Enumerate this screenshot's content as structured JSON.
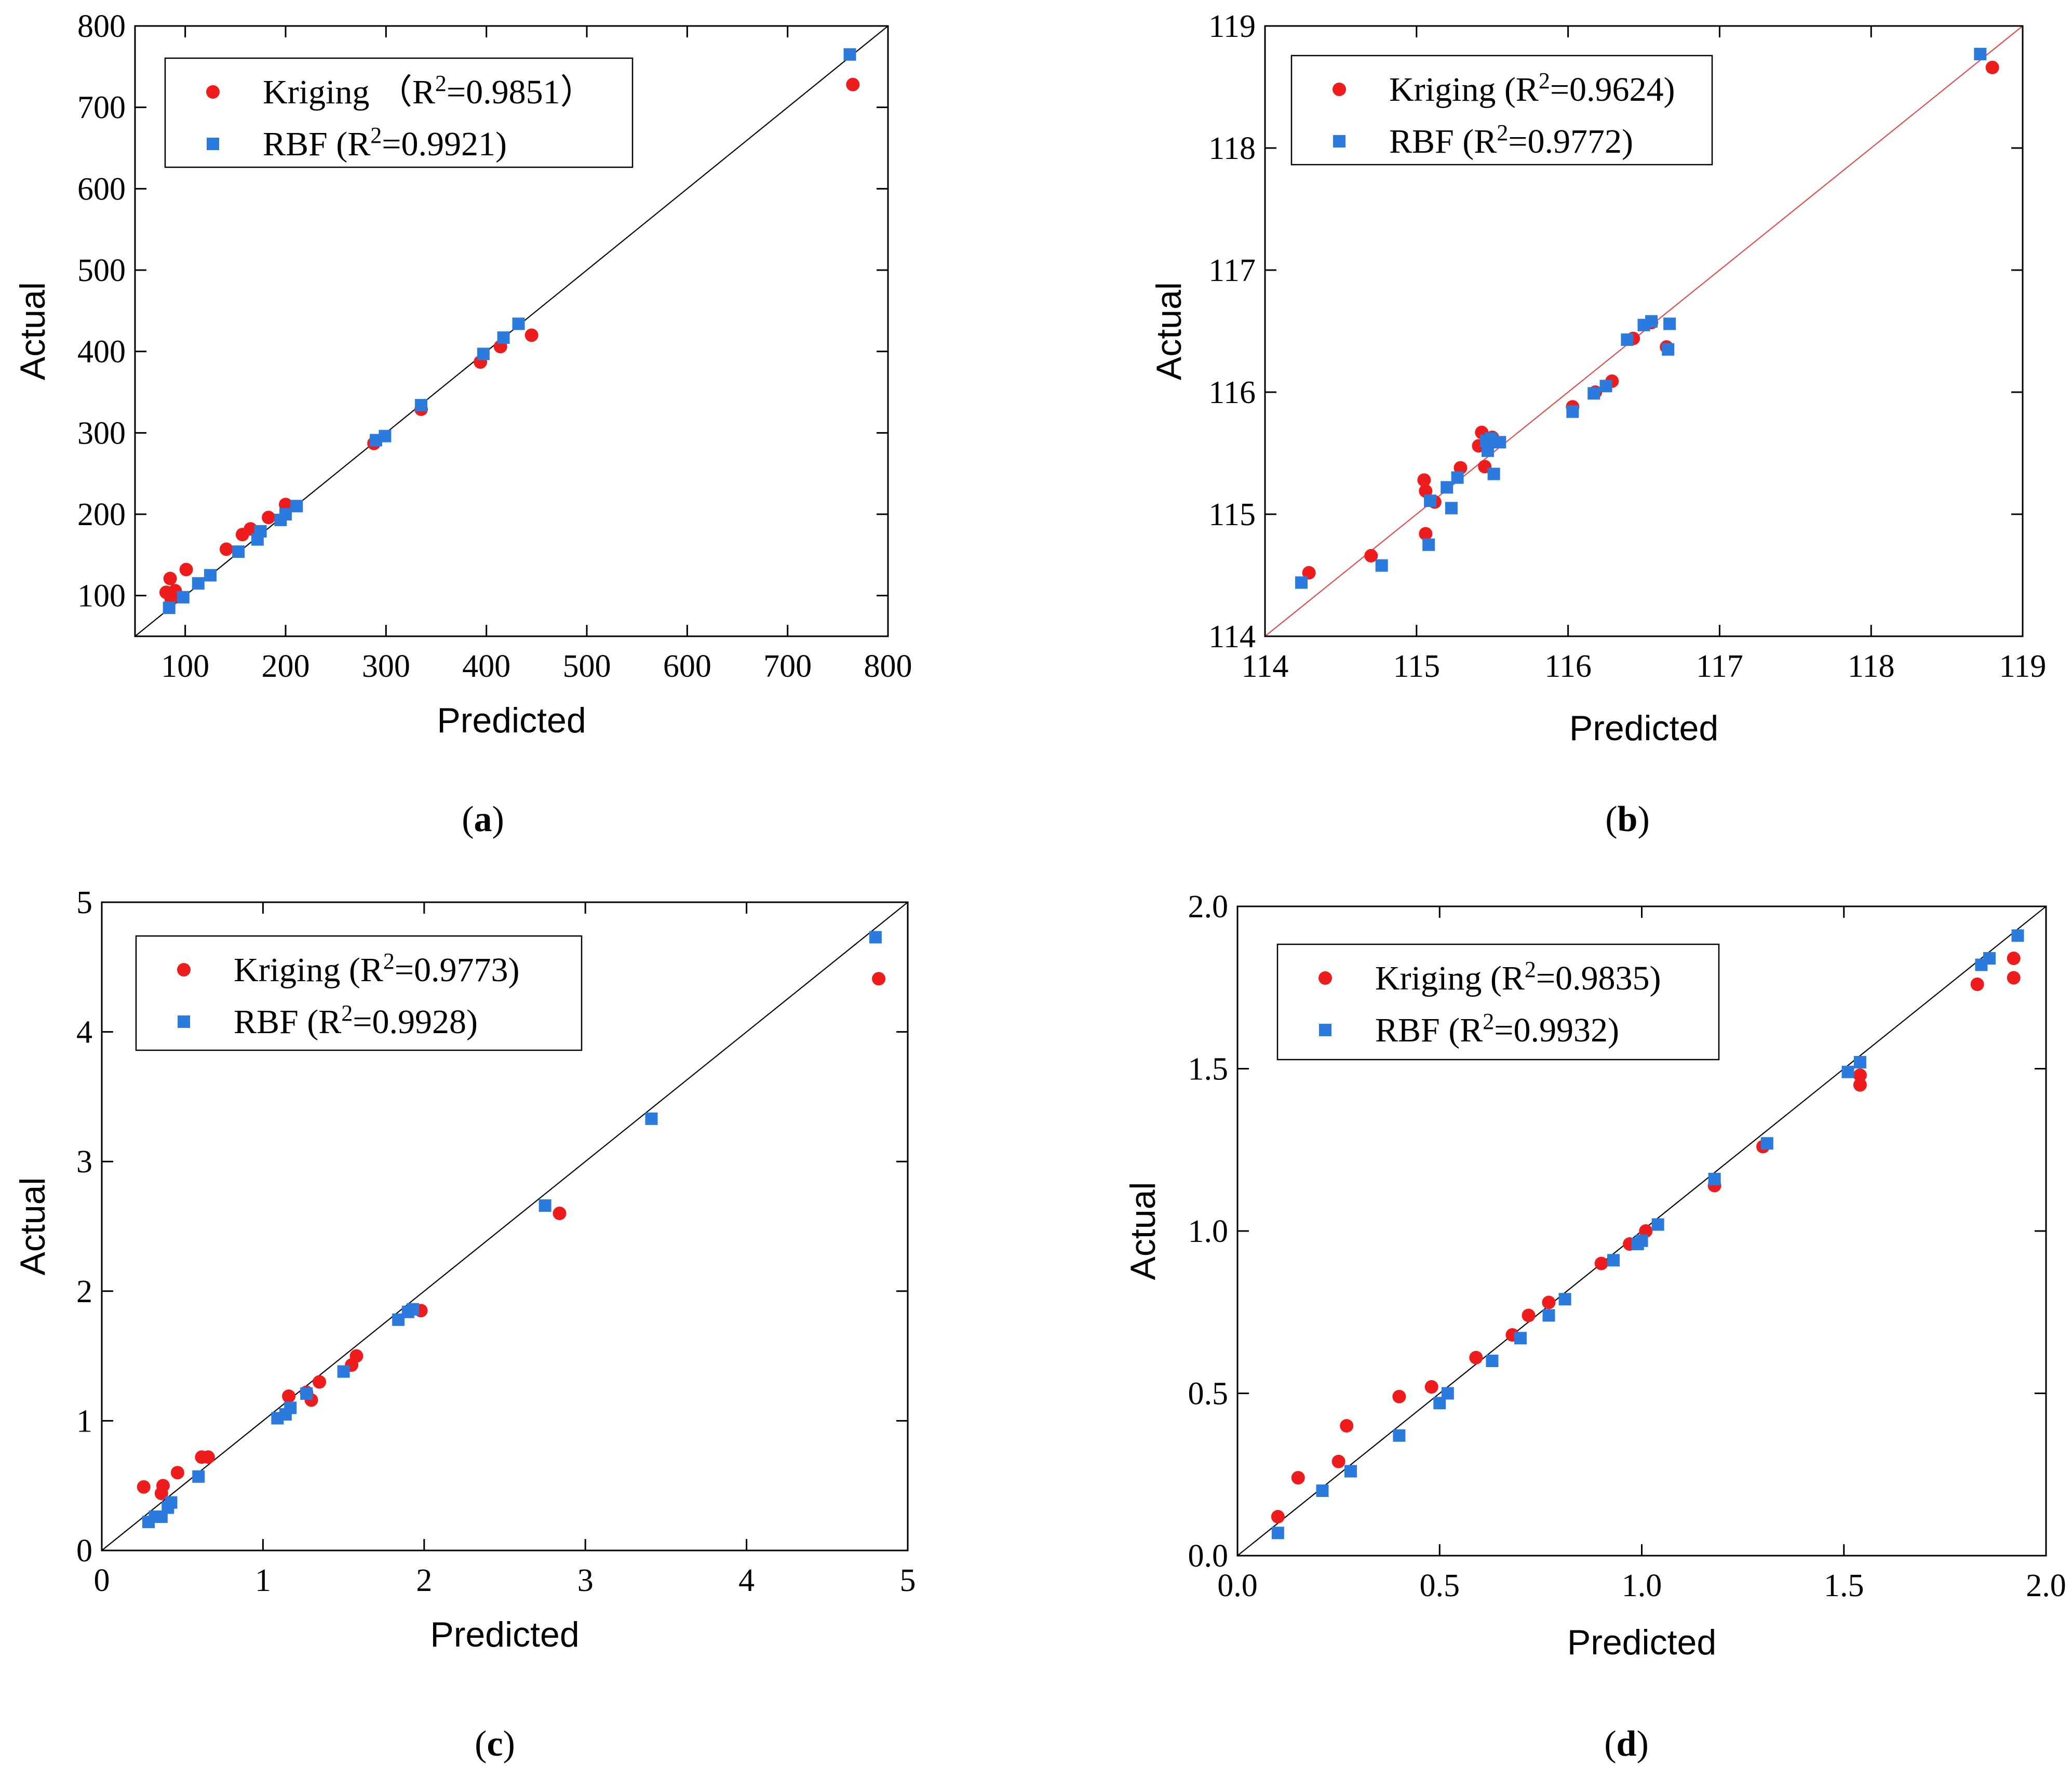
{
  "colors": {
    "kriging": "#ee1c1c",
    "rbf": "#2b7bdf",
    "axis": "#000000",
    "ref_line_a": "#000000",
    "ref_line_b": "#e34a4a"
  },
  "chart_data": [
    {
      "type": "scatter",
      "panel_label": "a",
      "xlabel": "Predicted",
      "ylabel": "Actual",
      "xlim": [
        50,
        800
      ],
      "ylim": [
        50,
        800
      ],
      "xticks": [
        "100",
        "200",
        "300",
        "400",
        "500",
        "600",
        "700",
        "800"
      ],
      "yticks": [
        "100",
        "200",
        "300",
        "400",
        "500",
        "600",
        "700",
        "800"
      ],
      "reference_line": "y = x",
      "legend": [
        {
          "series": "Kriging",
          "text": "Kriging （R",
          "sup": "2",
          "rest": "=0.9851）"
        },
        {
          "series": "RBF",
          "text": "RBF (R",
          "sup": "2",
          "rest": "=0.9921)"
        }
      ],
      "series": [
        {
          "name": "Kriging",
          "marker": "circle",
          "points": [
            [
              765,
              728
            ],
            [
              445,
              420
            ],
            [
              414,
              406
            ],
            [
              394,
              387
            ],
            [
              335,
              329
            ],
            [
              288,
              287
            ],
            [
              200,
              212
            ],
            [
              183,
              196
            ],
            [
              165,
              182
            ],
            [
              157,
              175
            ],
            [
              141,
              157
            ],
            [
              101,
              132
            ],
            [
              85,
              121
            ],
            [
              90,
              106
            ],
            [
              81,
              104
            ],
            [
              86,
              96
            ]
          ]
        },
        {
          "name": "RBF",
          "marker": "square",
          "points": [
            [
              762,
              765
            ],
            [
              432,
              434
            ],
            [
              417,
              417
            ],
            [
              397,
              397
            ],
            [
              335,
              334
            ],
            [
              299,
              296
            ],
            [
              290,
              291
            ],
            [
              211,
              210
            ],
            [
              200,
              200
            ],
            [
              195,
              193
            ],
            [
              175,
              179
            ],
            [
              172,
              169
            ],
            [
              153,
              154
            ],
            [
              125,
              125
            ],
            [
              113,
              115
            ],
            [
              98,
              98
            ],
            [
              84,
              85
            ]
          ]
        }
      ]
    },
    {
      "type": "scatter",
      "panel_label": "b",
      "xlabel": "Predicted",
      "ylabel": "Actual",
      "xlim": [
        114,
        119
      ],
      "ylim": [
        114,
        119
      ],
      "xticks": [
        "114",
        "115",
        "116",
        "117",
        "118",
        "119"
      ],
      "yticks": [
        "114",
        "115",
        "116",
        "117",
        "118",
        "119"
      ],
      "reference_line": "y = x",
      "legend": [
        {
          "series": "Kriging",
          "text": "Kriging (R",
          "sup": "2",
          "rest": "=0.9624)"
        },
        {
          "series": "RBF",
          "text": "RBF (R",
          "sup": "2",
          "rest": "=0.9772)"
        }
      ],
      "series": [
        {
          "name": "Kriging",
          "marker": "circle",
          "points": [
            [
              118.8,
              118.66
            ],
            [
              116.65,
              116.37
            ],
            [
              116.55,
              116.57
            ],
            [
              116.43,
              116.44
            ],
            [
              116.29,
              116.09
            ],
            [
              116.18,
              116.0
            ],
            [
              116.03,
              115.88
            ],
            [
              115.5,
              115.63
            ],
            [
              115.43,
              115.67
            ],
            [
              115.41,
              115.56
            ],
            [
              115.45,
              115.39
            ],
            [
              115.29,
              115.38
            ],
            [
              115.12,
              115.1
            ],
            [
              115.05,
              115.28
            ],
            [
              115.06,
              115.19
            ],
            [
              115.06,
              114.84
            ],
            [
              114.7,
              114.66
            ],
            [
              114.29,
              114.52
            ]
          ]
        },
        {
          "name": "RBF",
          "marker": "square",
          "points": [
            [
              118.72,
              118.77
            ],
            [
              116.67,
              116.56
            ],
            [
              116.66,
              116.35
            ],
            [
              116.55,
              116.58
            ],
            [
              116.5,
              116.55
            ],
            [
              116.39,
              116.43
            ],
            [
              116.25,
              116.05
            ],
            [
              116.17,
              115.99
            ],
            [
              116.03,
              115.84
            ],
            [
              115.55,
              115.59
            ],
            [
              115.49,
              115.62
            ],
            [
              115.46,
              115.6
            ],
            [
              115.47,
              115.52
            ],
            [
              115.51,
              115.33
            ],
            [
              115.27,
              115.3
            ],
            [
              115.2,
              115.22
            ],
            [
              115.23,
              115.05
            ],
            [
              115.09,
              115.11
            ],
            [
              115.08,
              114.75
            ],
            [
              114.77,
              114.58
            ],
            [
              114.24,
              114.44
            ]
          ]
        }
      ]
    },
    {
      "type": "scatter",
      "panel_label": "c",
      "xlabel": "Predicted",
      "ylabel": "Actual",
      "xlim": [
        0,
        5
      ],
      "ylim": [
        0,
        5
      ],
      "xticks": [
        "0",
        "1",
        "2",
        "3",
        "4",
        "5"
      ],
      "yticks": [
        "0",
        "1",
        "2",
        "3",
        "4",
        "5"
      ],
      "reference_line": "y = x",
      "legend": [
        {
          "series": "Kriging",
          "text": "Kriging (R",
          "sup": "2",
          "rest": "=0.9773)"
        },
        {
          "series": "RBF",
          "text": "RBF (R",
          "sup": "2",
          "rest": "=0.9928)"
        }
      ],
      "series": [
        {
          "name": "Kriging",
          "marker": "circle",
          "points": [
            [
              4.82,
              4.41
            ],
            [
              2.84,
              2.6
            ],
            [
              1.98,
              1.85
            ],
            [
              1.58,
              1.5
            ],
            [
              1.55,
              1.43
            ],
            [
              1.35,
              1.3
            ],
            [
              1.3,
              1.16
            ],
            [
              1.27,
              1.22
            ],
            [
              1.16,
              1.19
            ],
            [
              0.66,
              0.72
            ],
            [
              0.62,
              0.72
            ],
            [
              0.47,
              0.6
            ],
            [
              0.38,
              0.5
            ],
            [
              0.37,
              0.44
            ],
            [
              0.26,
              0.49
            ]
          ]
        },
        {
          "name": "RBF",
          "marker": "square",
          "points": [
            [
              4.8,
              4.73
            ],
            [
              3.41,
              3.33
            ],
            [
              2.75,
              2.66
            ],
            [
              1.93,
              1.86
            ],
            [
              1.9,
              1.84
            ],
            [
              1.84,
              1.78
            ],
            [
              1.5,
              1.38
            ],
            [
              1.27,
              1.21
            ],
            [
              1.17,
              1.1
            ],
            [
              1.14,
              1.05
            ],
            [
              1.09,
              1.02
            ],
            [
              0.6,
              0.57
            ],
            [
              0.43,
              0.37
            ],
            [
              0.41,
              0.33
            ],
            [
              0.37,
              0.26
            ],
            [
              0.33,
              0.26
            ],
            [
              0.29,
              0.22
            ]
          ]
        }
      ]
    },
    {
      "type": "scatter",
      "panel_label": "d",
      "xlabel": "Predicted",
      "ylabel": "Actual",
      "xlim": [
        0,
        2
      ],
      "ylim": [
        0,
        2
      ],
      "xticks": [
        "0.0",
        "0.5",
        "1.0",
        "1.5",
        "2.0"
      ],
      "yticks": [
        "0.0",
        "0.5",
        "1.0",
        "1.5",
        "2.0"
      ],
      "reference_line": "y = x",
      "legend": [
        {
          "series": "Kriging",
          "text": "Kriging (R",
          "sup": "2",
          "rest": "=0.9835)"
        },
        {
          "series": "RBF",
          "text": "RBF (R",
          "sup": "2",
          "rest": "=0.9932)"
        }
      ],
      "series": [
        {
          "name": "Kriging",
          "marker": "circle",
          "points": [
            [
              1.92,
              1.84
            ],
            [
              1.92,
              1.78
            ],
            [
              1.83,
              1.76
            ],
            [
              1.54,
              1.48
            ],
            [
              1.54,
              1.45
            ],
            [
              1.3,
              1.26
            ],
            [
              1.18,
              1.14
            ],
            [
              1.01,
              1.0
            ],
            [
              0.97,
              0.96
            ],
            [
              0.9,
              0.9
            ],
            [
              0.77,
              0.78
            ],
            [
              0.72,
              0.74
            ],
            [
              0.68,
              0.68
            ],
            [
              0.59,
              0.61
            ],
            [
              0.48,
              0.52
            ],
            [
              0.4,
              0.49
            ],
            [
              0.27,
              0.4
            ],
            [
              0.25,
              0.29
            ],
            [
              0.15,
              0.24
            ],
            [
              0.1,
              0.12
            ]
          ]
        },
        {
          "name": "RBF",
          "marker": "square",
          "points": [
            [
              1.93,
              1.91
            ],
            [
              1.86,
              1.84
            ],
            [
              1.84,
              1.82
            ],
            [
              1.54,
              1.52
            ],
            [
              1.51,
              1.49
            ],
            [
              1.31,
              1.27
            ],
            [
              1.18,
              1.16
            ],
            [
              1.04,
              1.02
            ],
            [
              1.0,
              0.97
            ],
            [
              0.99,
              0.96
            ],
            [
              0.93,
              0.91
            ],
            [
              0.81,
              0.79
            ],
            [
              0.77,
              0.74
            ],
            [
              0.7,
              0.67
            ],
            [
              0.63,
              0.6
            ],
            [
              0.52,
              0.5
            ],
            [
              0.5,
              0.47
            ],
            [
              0.4,
              0.37
            ],
            [
              0.28,
              0.26
            ],
            [
              0.21,
              0.2
            ],
            [
              0.1,
              0.07
            ]
          ]
        }
      ]
    }
  ]
}
